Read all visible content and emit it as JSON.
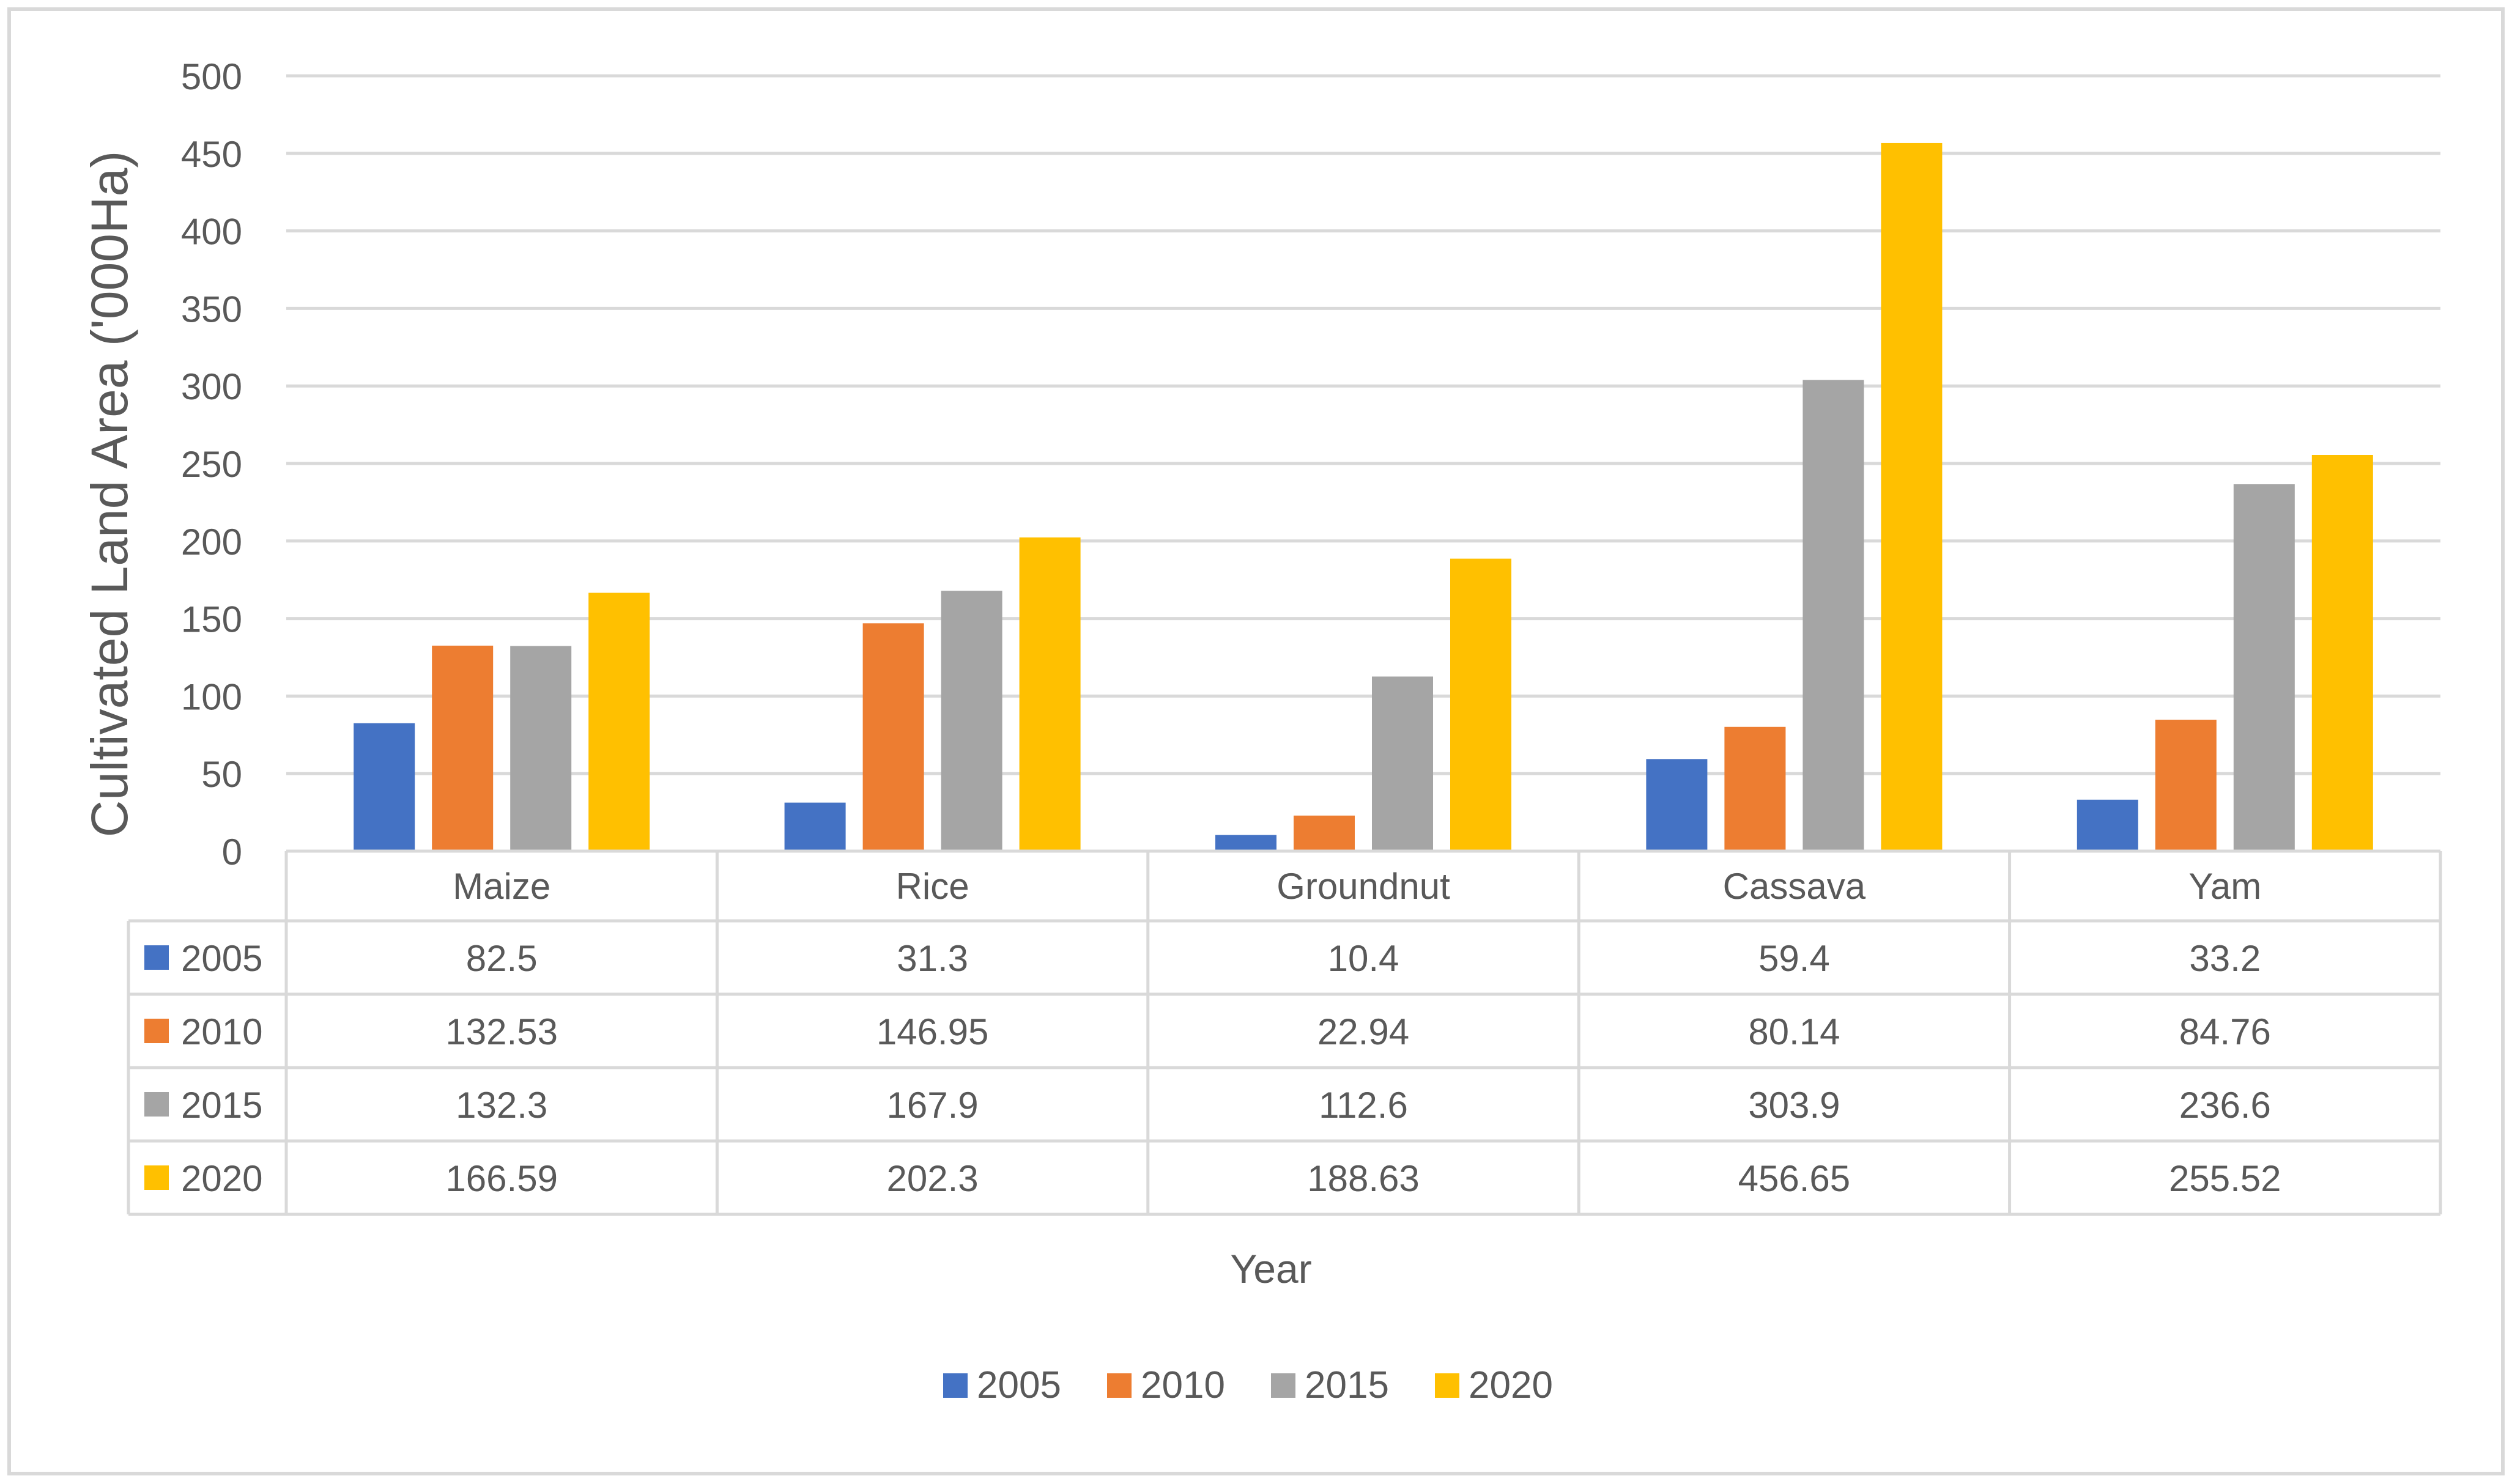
{
  "chart_data": {
    "type": "bar",
    "title": "",
    "xlabel": "Year",
    "ylabel": "Cultivated Land Area ('000Ha)",
    "categories": [
      "Maize",
      "Rice",
      "Groundnut",
      "Cassava",
      "Yam"
    ],
    "series": [
      {
        "name": "2005",
        "values": [
          82.5,
          31.3,
          10.4,
          59.4,
          33.2
        ],
        "display": [
          "82.5",
          "31.3",
          "10.4",
          "59.4",
          "33.2"
        ],
        "color": "#4472c4"
      },
      {
        "name": "2010",
        "values": [
          132.53,
          146.95,
          22.94,
          80.14,
          84.76
        ],
        "display": [
          "132.53",
          "146.95",
          "22.94",
          "80.14",
          "84.76"
        ],
        "color": "#ed7d31"
      },
      {
        "name": "2015",
        "values": [
          132.3,
          167.9,
          112.6,
          303.9,
          236.6
        ],
        "display": [
          "132.3",
          "167.9",
          "112.6",
          "303.9",
          "236.6"
        ],
        "color": "#a5a5a5"
      },
      {
        "name": "2020",
        "values": [
          166.59,
          202.3,
          188.63,
          456.65,
          255.52
        ],
        "display": [
          "166.59",
          "202.3",
          "188.63",
          "456.65",
          "255.52"
        ],
        "color": "#ffc000"
      }
    ],
    "ylim": [
      0,
      500
    ],
    "yticks": [
      "0",
      "50",
      "100",
      "150",
      "200",
      "250",
      "300",
      "350",
      "400",
      "450",
      "500"
    ],
    "grid": true,
    "data_table": true,
    "legend_position": "bottom"
  },
  "colors": {
    "gridline": "#d9d9d9",
    "axis_text": "#595959",
    "border": "#d9d9d9"
  }
}
